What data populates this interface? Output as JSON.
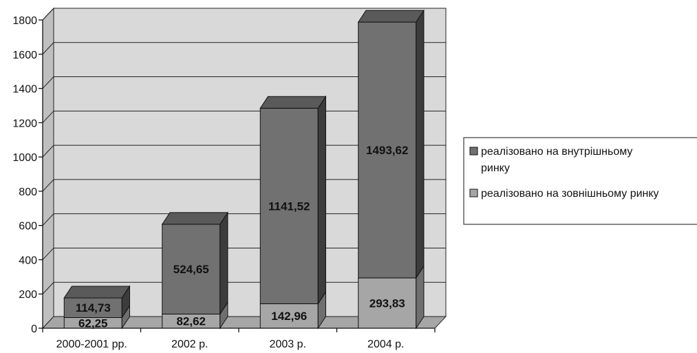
{
  "chart_data": {
    "type": "bar",
    "stacked": true,
    "three_d": true,
    "categories": [
      "2000-2001 рр.",
      "2002 р.",
      "2003 р.",
      "2004 р."
    ],
    "series": [
      {
        "name": "реалізовано на зовнішньому ринку",
        "values": [
          62.25,
          82.62,
          142.96,
          293.83
        ],
        "color": "#a6a6a6"
      },
      {
        "name": "реалізовано на внутрішньому ринку",
        "values": [
          114.73,
          524.65,
          1141.52,
          1493.62
        ],
        "color": "#717171"
      }
    ],
    "value_labels": [
      [
        "62,25",
        "82,62",
        "142,96",
        "293,83"
      ],
      [
        "114,73",
        "524,65",
        "1141,52",
        "1493,62"
      ]
    ],
    "y_ticks": [
      0,
      200,
      400,
      600,
      800,
      1000,
      1200,
      1400,
      1600,
      1800
    ],
    "ylim": [
      0,
      1800
    ],
    "grid": true,
    "legend": {
      "position": "right",
      "entries": [
        {
          "lines": [
            "реалізовано на внутрішньому",
            "ринку"
          ],
          "color": "#717171"
        },
        {
          "lines": [
            "реалізовано на зовнішньому ринку"
          ],
          "color": "#a6a6a6"
        }
      ]
    },
    "colors": {
      "plot_wall": "#d9d9d9",
      "floor": "#a6a6a6",
      "bar_top_dark": "#5a5a5a",
      "bar_side_dark": "#3c3c3c"
    }
  }
}
